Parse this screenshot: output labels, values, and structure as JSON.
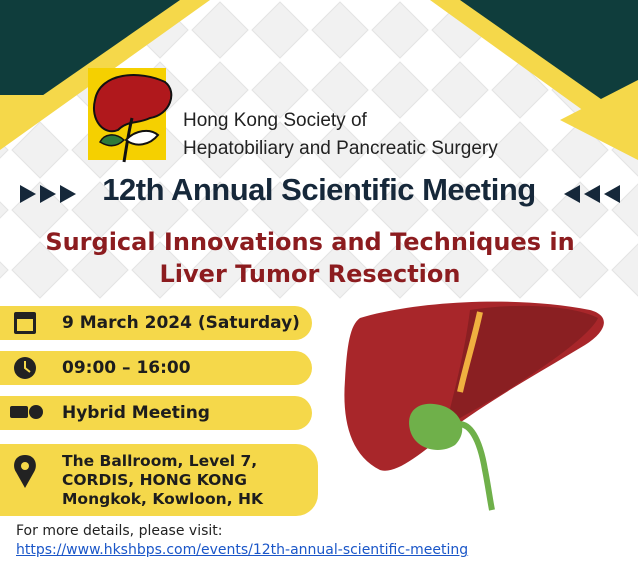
{
  "organization": {
    "name_line1": "Hong Kong Society of",
    "name_line2": "Hepatobiliary and Pancreatic Surgery"
  },
  "meeting_title": "12th Annual Scientific Meeting",
  "subtitle": [
    "Surgical Innovations and Techniques in",
    "Liver Tumor Resection"
  ],
  "details": {
    "date": "9 March 2024 (Saturday)",
    "time": "09:00 – 16:00",
    "format": "Hybrid Meeting",
    "venue": [
      "The Ballroom, Level 7,",
      "CORDIS, HONG KONG",
      "Mongkok, Kowloon, HK"
    ]
  },
  "footer": {
    "text": "For more details, please visit:",
    "link": "https://www.hkshbps.com/events/12th-annual-scientific-meeting"
  }
}
